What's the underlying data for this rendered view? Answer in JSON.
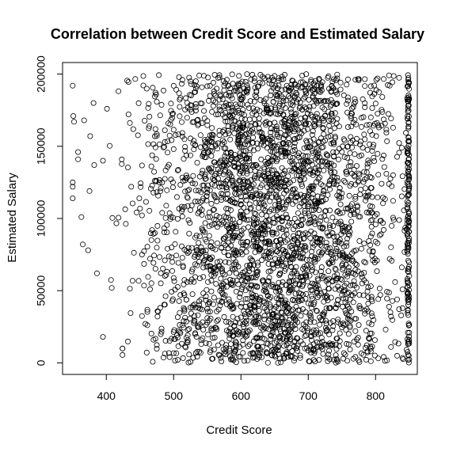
{
  "chart_data": {
    "type": "scatter",
    "title": "Correlation between Credit Score and Estimated Salary",
    "xlabel": "Credit Score",
    "ylabel": "Estimated Salary",
    "xlim": [
      335,
      862
    ],
    "ylim": [
      -8000,
      208000
    ],
    "x_ticks": [
      400,
      500,
      600,
      700,
      800
    ],
    "y_ticks": [
      0,
      50000,
      100000,
      150000,
      200000
    ],
    "x_tick_labels": [
      "400",
      "500",
      "600",
      "700",
      "800"
    ],
    "y_tick_labels": [
      "0",
      "50000",
      "100000",
      "150000",
      "200000"
    ],
    "grid": false,
    "marker": "open-circle",
    "n_points": 10000,
    "x_range": [
      350,
      850
    ],
    "y_range": [
      12,
      199992
    ],
    "sparse_points": [
      {
        "x": 350,
        "y": 192000
      },
      {
        "x": 351,
        "y": 171000
      },
      {
        "x": 352,
        "y": 167000
      },
      {
        "x": 350,
        "y": 125000
      },
      {
        "x": 350,
        "y": 122000
      },
      {
        "x": 350,
        "y": 114000
      },
      {
        "x": 358,
        "y": 146000
      },
      {
        "x": 358,
        "y": 141000
      },
      {
        "x": 363,
        "y": 101000
      },
      {
        "x": 365,
        "y": 82000
      },
      {
        "x": 367,
        "y": 168000
      },
      {
        "x": 373,
        "y": 78000
      },
      {
        "x": 375,
        "y": 119000
      },
      {
        "x": 376,
        "y": 157000
      },
      {
        "x": 381,
        "y": 180000
      },
      {
        "x": 382,
        "y": 137000
      },
      {
        "x": 386,
        "y": 62000
      },
      {
        "x": 395,
        "y": 18000
      },
      {
        "x": 395,
        "y": 140000
      },
      {
        "x": 401,
        "y": 176000
      }
    ]
  }
}
